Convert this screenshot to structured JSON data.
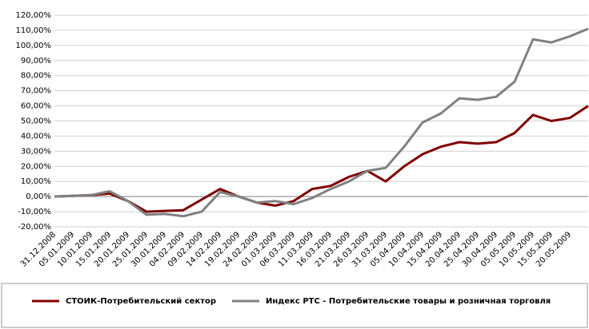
{
  "chart_data": {
    "type": "line",
    "categories": [
      "31.12.2008",
      "05.01.2009",
      "10.01.2009",
      "15.01.2009",
      "20.01.2009",
      "25.01.2009",
      "30.01.2009",
      "04.02.2009",
      "09.02.2009",
      "14.02.2009",
      "19.02.2009",
      "24.02.2009",
      "01.03.2009",
      "06.03.2009",
      "11.03.2009",
      "16.03.2009",
      "21.03.2009",
      "26.03.2009",
      "31.03.2009",
      "05.04.2009",
      "10.04.2009",
      "15.04.2009",
      "20.04.2009",
      "25.04.2009",
      "30.04.2009",
      "05.05.2009",
      "10.05.2009",
      "15.05.2009",
      "20.05.2009",
      null
    ],
    "series": [
      {
        "name": "СТОИК-Потребительский сектор",
        "color": "#7f0000",
        "values": [
          0,
          0.5,
          1,
          2,
          -3,
          -10,
          -9.5,
          -9,
          -2,
          5,
          0,
          -4,
          -6,
          -3,
          5,
          7,
          13,
          17,
          10,
          20,
          28,
          33,
          36,
          35,
          36,
          42,
          54,
          50,
          52,
          60
        ]
      },
      {
        "name": "Индекс РТС - Потребительские товары и розничная торговля",
        "color": "#808080",
        "values": [
          0,
          0.5,
          1,
          3.5,
          -3,
          -12,
          -11.5,
          -13,
          -10,
          3,
          0,
          -4,
          -3,
          -5,
          -1,
          5,
          10,
          17,
          19,
          33,
          49,
          55,
          65,
          64,
          66,
          76,
          104,
          102,
          106,
          111
        ]
      }
    ],
    "ylim": [
      -20,
      120
    ],
    "yticks": [
      {
        "value": -20,
        "label": "-20,00%"
      },
      {
        "value": -10,
        "label": "-10,00%"
      },
      {
        "value": 0,
        "label": "0,00%"
      },
      {
        "value": 10,
        "label": "10,00%"
      },
      {
        "value": 20,
        "label": "20,00%"
      },
      {
        "value": 30,
        "label": "30,00%"
      },
      {
        "value": 40,
        "label": "40,00%"
      },
      {
        "value": 50,
        "label": "50,00%"
      },
      {
        "value": 60,
        "label": "60,00%"
      },
      {
        "value": 70,
        "label": "70,00%"
      },
      {
        "value": 80,
        "label": "80,00%"
      },
      {
        "value": 90,
        "label": "90,00%"
      },
      {
        "value": 100,
        "label": "100,00%"
      },
      {
        "value": 110,
        "label": "110,00%"
      },
      {
        "value": 120,
        "label": "120,00%"
      }
    ],
    "grid": true
  }
}
